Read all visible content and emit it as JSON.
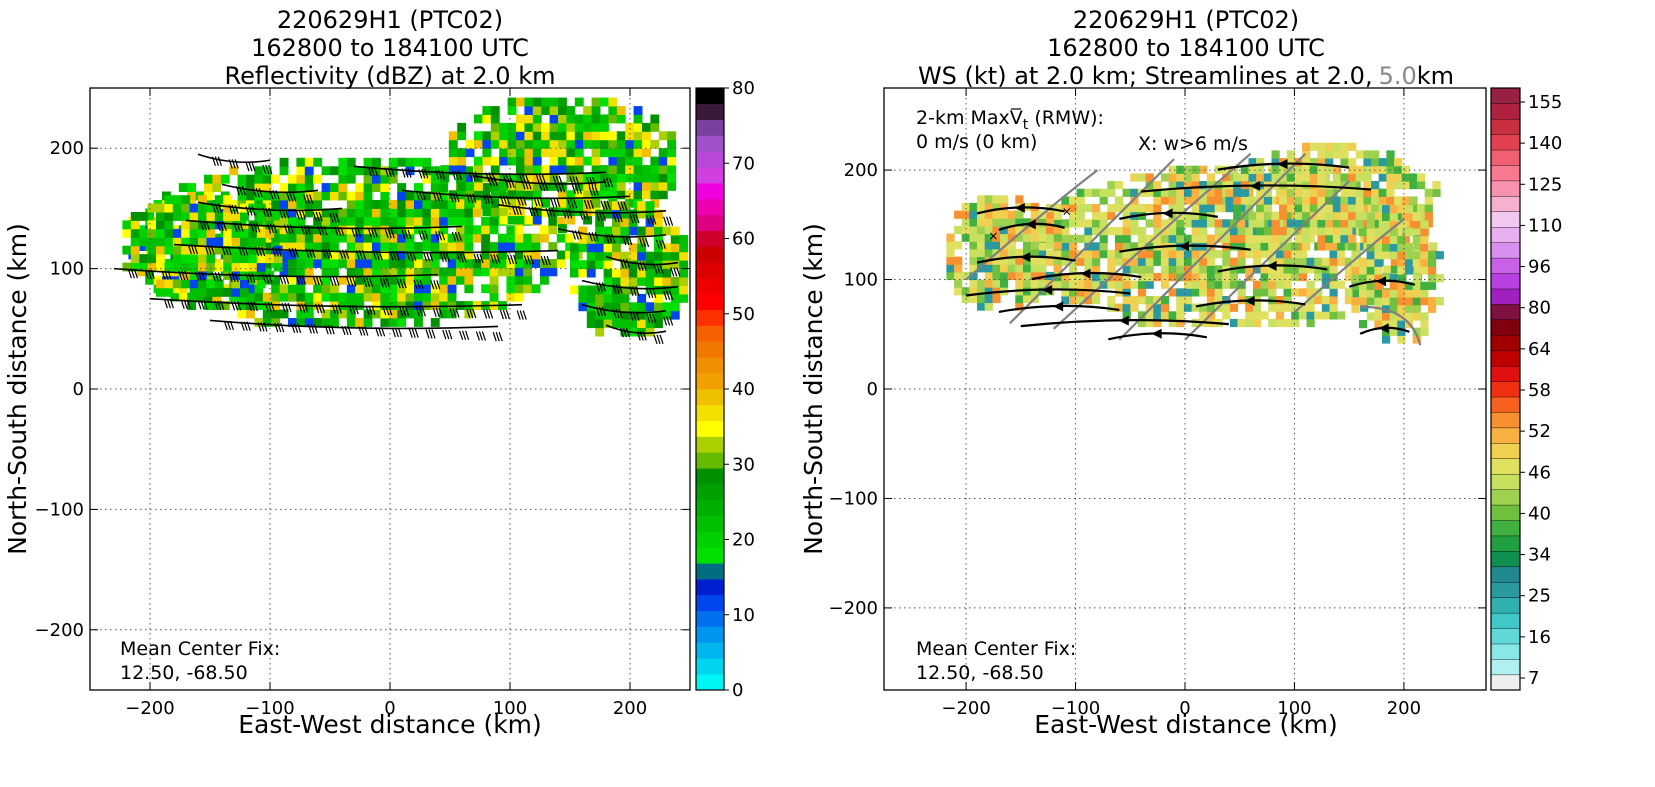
{
  "chart_data": [
    {
      "type": "heatmap",
      "title": [
        "220629H1 (PTC02)",
        "162800 to 184100 UTC",
        "Reflectivity (dBZ) at 2.0 km"
      ],
      "xlabel": "East-West distance (km)",
      "ylabel": "North-South distance (km)",
      "xlim": [
        -250,
        250
      ],
      "ylim": [
        -250,
        250
      ],
      "xticks": [
        -200,
        -100,
        0,
        100,
        200
      ],
      "yticks": [
        -200,
        -100,
        0,
        100,
        200
      ],
      "grid": true,
      "annotation": [
        "Mean Center Fix:",
        "12.50, -68.50"
      ],
      "overlay": "wind barbs",
      "colorbar": {
        "ticks": [
          0,
          10,
          20,
          30,
          40,
          50,
          60,
          70,
          80
        ],
        "colors": [
          "#00f5f5",
          "#00d5f0",
          "#00b5ee",
          "#0095ee",
          "#0070ee",
          "#0045ee",
          "#0020d0",
          "#006e80",
          "#00e000",
          "#00d000",
          "#00c000",
          "#00b000",
          "#00a000",
          "#009000",
          "#66bb00",
          "#aad000",
          "#ffff00",
          "#f3df00",
          "#eec000",
          "#f0a000",
          "#f09000",
          "#f07800",
          "#f56000",
          "#ff3000",
          "#ff0000",
          "#ee0000",
          "#dd0000",
          "#cc0000",
          "#d0002c",
          "#dd0080",
          "#ee00b0",
          "#f000e0",
          "#d040e0",
          "#b848d8",
          "#a050c8",
          "#7a3fa0",
          "#3a1a3a",
          "#000000"
        ]
      },
      "field_blobs": [
        {
          "cx": -35,
          "cy": 117,
          "rx": 190,
          "ry": 72
        },
        {
          "cx": 140,
          "cy": 185,
          "rx": 105,
          "ry": 55
        },
        {
          "cx": 195,
          "cy": 95,
          "rx": 52,
          "ry": 58
        },
        {
          "cx": -160,
          "cy": 115,
          "rx": 70,
          "ry": 45
        }
      ],
      "barb_lines": [
        {
          "y": 190,
          "x0": -160,
          "x1": -100
        },
        {
          "y": 180,
          "x0": -30,
          "x1": 180
        },
        {
          "y": 172,
          "x0": 70,
          "x1": 180
        },
        {
          "y": 165,
          "x0": -140,
          "x1": -60
        },
        {
          "y": 160,
          "x0": 10,
          "x1": 200
        },
        {
          "y": 150,
          "x0": -160,
          "x1": -40
        },
        {
          "y": 148,
          "x0": 90,
          "x1": 230
        },
        {
          "y": 135,
          "x0": -170,
          "x1": 60
        },
        {
          "y": 128,
          "x0": 140,
          "x1": 230
        },
        {
          "y": 115,
          "x0": -180,
          "x1": 140
        },
        {
          "y": 105,
          "x0": 180,
          "x1": 240
        },
        {
          "y": 95,
          "x0": -230,
          "x1": 40
        },
        {
          "y": 85,
          "x0": 160,
          "x1": 240
        },
        {
          "y": 70,
          "x0": -200,
          "x1": 110
        },
        {
          "y": 65,
          "x0": 160,
          "x1": 230
        },
        {
          "y": 52,
          "x0": -150,
          "x1": 90
        },
        {
          "y": 48,
          "x0": 180,
          "x1": 230
        }
      ]
    },
    {
      "type": "heatmap",
      "title": [
        "220629H1 (PTC02)",
        "162800 to 184100 UTC",
        "WS (kt) at 2.0 km; Streamlines at 2.0,",
        "5.0",
        "km"
      ],
      "xlabel": "East-West distance (km)",
      "ylabel": "North-South distance (km)",
      "xlim": [
        -275,
        275
      ],
      "ylim": [
        -275,
        275
      ],
      "xticks": [
        -200,
        -100,
        0,
        100,
        200
      ],
      "yticks": [
        -200,
        -100,
        0,
        100,
        200
      ],
      "grid": true,
      "annotation": [
        "Mean Center Fix:",
        "12.50, -68.50"
      ],
      "info_lines": [
        "2-km MaxV",
        "t",
        " (RMW):",
        "0 m/s (0 km)"
      ],
      "w_note": "X: w>6 m/s",
      "overlay": "streamlines",
      "colorbar": {
        "ticks": [
          7,
          16,
          25,
          34,
          40,
          46,
          52,
          58,
          64,
          80,
          96,
          110,
          125,
          140,
          155
        ],
        "colors": [
          "#eeeeee",
          "#b0f0f0",
          "#88e8e8",
          "#60d8d8",
          "#40c8c8",
          "#30b0b0",
          "#2a9aa0",
          "#208890",
          "#109050",
          "#20a040",
          "#40b040",
          "#70c040",
          "#a0d050",
          "#c8e060",
          "#e0e060",
          "#f0d050",
          "#f8b040",
          "#f89030",
          "#f86020",
          "#f03010",
          "#e01010",
          "#c00000",
          "#a00000",
          "#800010",
          "#801040",
          "#a020c0",
          "#b840e0",
          "#c860e8",
          "#d890f0",
          "#e8b0f0",
          "#f0c8f0",
          "#f8b0d0",
          "#f890b0",
          "#f87890",
          "#f06070",
          "#e04050",
          "#c83040",
          "#b02040",
          "#982040"
        ]
      },
      "field_blobs": [
        {
          "cx": 35,
          "cy": 125,
          "rx": 190,
          "ry": 75
        },
        {
          "cx": 130,
          "cy": 170,
          "rx": 100,
          "ry": 50
        },
        {
          "cx": -170,
          "cy": 120,
          "rx": 55,
          "ry": 55
        },
        {
          "cx": 190,
          "cy": 100,
          "rx": 45,
          "ry": 65
        }
      ],
      "stream_black": [
        {
          "y": 205,
          "x0": 30,
          "x1": 150
        },
        {
          "y": 185,
          "x0": -40,
          "x1": 170
        },
        {
          "y": 165,
          "x0": -190,
          "x1": -110
        },
        {
          "y": 160,
          "x0": -60,
          "x1": 30
        },
        {
          "y": 150,
          "x0": -170,
          "x1": -110
        },
        {
          "y": 130,
          "x0": -60,
          "x1": 60
        },
        {
          "y": 120,
          "x0": -190,
          "x1": -100
        },
        {
          "y": 112,
          "x0": 30,
          "x1": 130
        },
        {
          "y": 105,
          "x0": -140,
          "x1": -40
        },
        {
          "y": 98,
          "x0": 150,
          "x1": 210
        },
        {
          "y": 90,
          "x0": -200,
          "x1": -50
        },
        {
          "y": 80,
          "x0": 10,
          "x1": 110
        },
        {
          "y": 75,
          "x0": -170,
          "x1": -60
        },
        {
          "y": 62,
          "x0": -150,
          "x1": 40
        },
        {
          "y": 55,
          "x0": 160,
          "x1": 205
        },
        {
          "y": 50,
          "x0": -70,
          "x1": 20
        }
      ],
      "stream_gray": [
        {
          "x0": -200,
          "y0": 100,
          "x1": -80,
          "y1": 200
        },
        {
          "x0": -160,
          "y0": 60,
          "x1": -10,
          "y1": 210
        },
        {
          "x0": -120,
          "y0": 55,
          "x1": 60,
          "y1": 215
        },
        {
          "x0": -60,
          "y0": 45,
          "x1": 110,
          "y1": 215
        },
        {
          "x0": 0,
          "y0": 45,
          "x1": 150,
          "y1": 190
        },
        {
          "x0": 100,
          "y0": 70,
          "x1": 200,
          "y1": 155
        },
        {
          "x0": 160,
          "y0": 75,
          "x1": 215,
          "y1": 40
        }
      ]
    }
  ]
}
